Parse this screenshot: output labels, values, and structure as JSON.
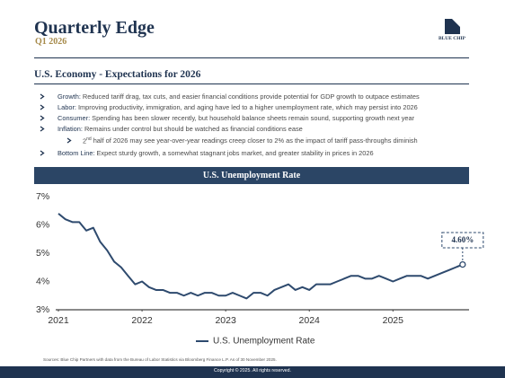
{
  "header": {
    "title": "Quarterly Edge",
    "subtitle": "Q1 2026",
    "logo_text": "BLUE CHIP"
  },
  "section": {
    "title": "U.S. Economy - Expectations for 2026"
  },
  "bullets": [
    {
      "label": "Growth:",
      "text": "Reduced tariff drag, tax cuts, and easier financial conditions provide potential for GDP growth to outpace estimates"
    },
    {
      "label": "Labor:",
      "text": "Improving productivity, immigration, and aging have led to a higher unemployment rate, which may persist into 2026"
    },
    {
      "label": "Consumer:",
      "text": "Spending has been slower recently, but household balance sheets remain sound, supporting growth next year"
    },
    {
      "label": "Inflation:",
      "text": "Remains under control but should be watched as financial conditions ease"
    }
  ],
  "sub_bullet": {
    "ordinal": "2",
    "ordinal_suffix": "nd",
    "text": "half of 2026 may see year-over-year readings creep closer to 2% as the impact of tariff pass-throughs diminish"
  },
  "bottom_line": {
    "label": "Bottom Line:",
    "text": "Expect sturdy growth, a somewhat stagnant jobs market, and greater stability in prices in 2026"
  },
  "chart_data": {
    "type": "line",
    "title": "U.S. Unemployment Rate",
    "x": [
      2021,
      2021.083,
      2021.167,
      2021.25,
      2021.333,
      2021.417,
      2021.5,
      2021.583,
      2021.667,
      2021.75,
      2021.833,
      2021.917,
      2022,
      2022.083,
      2022.167,
      2022.25,
      2022.333,
      2022.417,
      2022.5,
      2022.583,
      2022.667,
      2022.75,
      2022.833,
      2022.917,
      2023,
      2023.083,
      2023.167,
      2023.25,
      2023.333,
      2023.417,
      2023.5,
      2023.583,
      2023.667,
      2023.75,
      2023.833,
      2023.917,
      2024,
      2024.083,
      2024.167,
      2024.25,
      2024.333,
      2024.417,
      2024.5,
      2024.583,
      2024.667,
      2024.75,
      2024.833,
      2024.917,
      2025,
      2025.083,
      2025.167,
      2025.25,
      2025.333,
      2025.417,
      2025.5,
      2025.583,
      2025.667,
      2025.75,
      2025.833
    ],
    "series": [
      {
        "name": "U.S. Unemployment Rate",
        "color": "#2e4a6e",
        "values": [
          6.4,
          6.2,
          6.1,
          6.1,
          5.8,
          5.9,
          5.4,
          5.1,
          4.7,
          4.5,
          4.2,
          3.9,
          4.0,
          3.8,
          3.7,
          3.7,
          3.6,
          3.6,
          3.5,
          3.6,
          3.5,
          3.6,
          3.6,
          3.5,
          3.5,
          3.6,
          3.5,
          3.4,
          3.6,
          3.6,
          3.5,
          3.7,
          3.8,
          3.9,
          3.7,
          3.8,
          3.7,
          3.9,
          3.9,
          3.9,
          4.0,
          4.1,
          4.2,
          4.2,
          4.1,
          4.1,
          4.2,
          4.1,
          4.0,
          4.1,
          4.2,
          4.2,
          4.2,
          4.1,
          4.2,
          4.3,
          4.4,
          4.5,
          4.6
        ]
      }
    ],
    "annotation": "4.60%",
    "xlim": [
      2021,
      2025.91
    ],
    "xticks": [
      {
        "value": 2021,
        "label": "2021"
      },
      {
        "value": 2022,
        "label": "2022"
      },
      {
        "value": 2023,
        "label": "2023"
      },
      {
        "value": 2024,
        "label": "2024"
      },
      {
        "value": 2025,
        "label": "2025"
      }
    ],
    "ylim": [
      3,
      7
    ],
    "yticks": [
      {
        "value": 3,
        "label": "3%"
      },
      {
        "value": 4,
        "label": "4%"
      },
      {
        "value": 5,
        "label": "5%"
      },
      {
        "value": 6,
        "label": "6%"
      },
      {
        "value": 7,
        "label": "7%"
      }
    ],
    "grid": false,
    "legend": "bottom"
  },
  "footer": {
    "source": "Sources: Blue Chip Partners with data from the Bureau of Labor Statistics via Bloomberg Finance L.P. As of 30 November 2025.",
    "copyright": "Copyright © 2025. All rights reserved."
  }
}
